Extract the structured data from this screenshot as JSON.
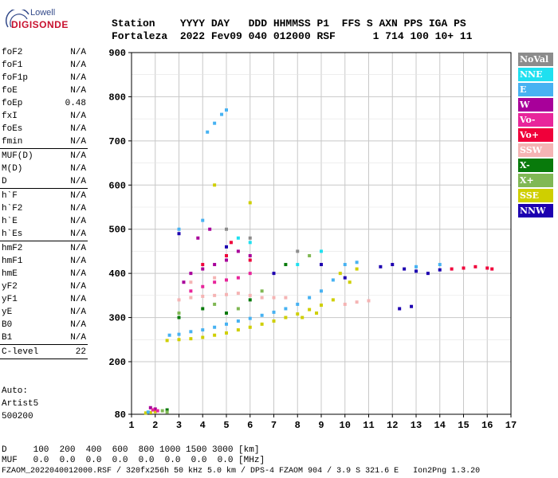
{
  "logo": {
    "line1": "Lowell",
    "line2": "DIGISONDE"
  },
  "header": {
    "row1": "Station    YYYY DAY   DDD HHMMSS P1  FFS S AXN PPS IGA PS",
    "row2": "Fortaleza  2022 Fev09 040 012000 RSF      1 714 100 10+ 11"
  },
  "params": {
    "group1": [
      {
        "name": "foF2",
        "value": "N/A"
      },
      {
        "name": "foF1",
        "value": "N/A"
      },
      {
        "name": "foF1p",
        "value": "N/A"
      },
      {
        "name": "foE",
        "value": "N/A"
      },
      {
        "name": "foEp",
        "value": "0.48"
      },
      {
        "name": "fxI",
        "value": "N/A"
      },
      {
        "name": "foEs",
        "value": "N/A"
      },
      {
        "name": "fmin",
        "value": "N/A"
      }
    ],
    "group2": [
      {
        "name": "MUF(D)",
        "value": "N/A"
      },
      {
        "name": "M(D)",
        "value": "N/A"
      },
      {
        "name": "D",
        "value": "N/A"
      }
    ],
    "group3": [
      {
        "name": "h`F",
        "value": "N/A"
      },
      {
        "name": "h`F2",
        "value": "N/A"
      },
      {
        "name": "h`E",
        "value": "N/A"
      },
      {
        "name": "h`Es",
        "value": "N/A"
      }
    ],
    "group4": [
      {
        "name": "hmF2",
        "value": "N/A"
      },
      {
        "name": "hmF1",
        "value": "N/A"
      },
      {
        "name": "hmE",
        "value": "N/A"
      },
      {
        "name": "yF2",
        "value": "N/A"
      },
      {
        "name": "yF1",
        "value": "N/A"
      },
      {
        "name": "yE",
        "value": "N/A"
      },
      {
        "name": "B0",
        "value": "N/A"
      },
      {
        "name": "B1",
        "value": "N/A"
      }
    ],
    "clevel": {
      "name": "C-level",
      "value": "22"
    }
  },
  "auto": {
    "line1": "Auto:",
    "line2": "Artist5",
    "line3": "500200"
  },
  "legend": [
    {
      "label": "NoVal",
      "color": "#8c8c8c"
    },
    {
      "label": "NNE",
      "color": "#1fe0f0"
    },
    {
      "label": "E",
      "color": "#47b2f2"
    },
    {
      "label": "W",
      "color": "#a8009a"
    },
    {
      "label": "Vo-",
      "color": "#e8259b"
    },
    {
      "label": "Vo+",
      "color": "#f0003a"
    },
    {
      "label": "SSW",
      "color": "#f5b4b4"
    },
    {
      "label": "X-",
      "color": "#087a0b"
    },
    {
      "label": "X+",
      "color": "#80b854"
    },
    {
      "label": "SSE",
      "color": "#cfcf00"
    },
    {
      "label": "NNW",
      "color": "#1d00b0"
    }
  ],
  "bottom": {
    "row1": "D     100  200  400  600  800 1000 1500 3000 [km]",
    "row2": "MUF   0.0  0.0  0.0  0.0  0.0  0.0  0.0  0.0 [MHz]",
    "row3": "FZAOM_2022040012000.RSF / 320fx256h 50 kHz 5.0 km / DPS-4 FZAOM 904 / 3.9 S 321.6 E   Ion2Png 1.3.20"
  },
  "chart_data": {
    "type": "scatter",
    "xlim": [
      1,
      17
    ],
    "ylim": [
      80,
      900
    ],
    "x_ticks": [
      1,
      2,
      3,
      4,
      5,
      6,
      7,
      8,
      9,
      10,
      11,
      12,
      13,
      14,
      15,
      16,
      17
    ],
    "y_ticks": [
      80,
      200,
      300,
      400,
      500,
      600,
      700,
      800,
      900
    ],
    "grid": true,
    "series": [
      {
        "name": "SSE",
        "color": "#cfcf00",
        "points": [
          [
            2.5,
            248
          ],
          [
            3.0,
            250
          ],
          [
            3.5,
            252
          ],
          [
            4.0,
            255
          ],
          [
            4.5,
            260
          ],
          [
            5.0,
            265
          ],
          [
            5.5,
            272
          ],
          [
            6.0,
            278
          ],
          [
            6.5,
            285
          ],
          [
            7.0,
            292
          ],
          [
            7.5,
            300
          ],
          [
            8.0,
            308
          ],
          [
            8.5,
            318
          ],
          [
            9.0,
            328
          ],
          [
            9.5,
            340
          ],
          [
            8.2,
            300
          ],
          [
            8.8,
            310
          ],
          [
            1.6,
            83
          ],
          [
            1.8,
            84
          ],
          [
            2.0,
            86
          ],
          [
            4.5,
            600
          ],
          [
            6.0,
            560
          ],
          [
            9.8,
            400
          ],
          [
            10.2,
            380
          ],
          [
            10.5,
            410
          ]
        ]
      },
      {
        "name": "E",
        "color": "#47b2f2",
        "points": [
          [
            2.6,
            260
          ],
          [
            3.0,
            262
          ],
          [
            3.5,
            268
          ],
          [
            4.0,
            272
          ],
          [
            4.5,
            278
          ],
          [
            5.0,
            285
          ],
          [
            5.5,
            292
          ],
          [
            6.0,
            298
          ],
          [
            6.5,
            305
          ],
          [
            7.0,
            312
          ],
          [
            7.5,
            320
          ],
          [
            8.0,
            330
          ],
          [
            8.5,
            345
          ],
          [
            9.0,
            360
          ],
          [
            9.5,
            385
          ],
          [
            4.2,
            720
          ],
          [
            4.5,
            740
          ],
          [
            4.8,
            760
          ],
          [
            5.0,
            770
          ],
          [
            3.0,
            500
          ],
          [
            4.0,
            520
          ],
          [
            10.0,
            420
          ],
          [
            10.5,
            425
          ],
          [
            13.0,
            415
          ],
          [
            14.0,
            420
          ],
          [
            1.7,
            85
          ]
        ]
      },
      {
        "name": "NNE",
        "color": "#1fe0f0",
        "points": [
          [
            5.5,
            480
          ],
          [
            6.0,
            470
          ],
          [
            8.0,
            420
          ],
          [
            9.0,
            450
          ]
        ]
      },
      {
        "name": "SSW",
        "color": "#f5b4b4",
        "points": [
          [
            3.0,
            340
          ],
          [
            3.5,
            345
          ],
          [
            4.0,
            348
          ],
          [
            4.5,
            350
          ],
          [
            5.0,
            352
          ],
          [
            5.5,
            355
          ],
          [
            6.0,
            350
          ],
          [
            6.5,
            345
          ],
          [
            7.0,
            345
          ],
          [
            7.5,
            345
          ],
          [
            10.0,
            330
          ],
          [
            10.5,
            335
          ],
          [
            11.0,
            338
          ],
          [
            3.5,
            380
          ],
          [
            4.5,
            390
          ]
        ]
      },
      {
        "name": "W",
        "color": "#a8009a",
        "points": [
          [
            3.2,
            380
          ],
          [
            3.5,
            400
          ],
          [
            4.0,
            410
          ],
          [
            4.5,
            420
          ],
          [
            5.0,
            430
          ],
          [
            5.5,
            450
          ],
          [
            6.0,
            440
          ],
          [
            3.8,
            480
          ],
          [
            4.3,
            500
          ],
          [
            1.8,
            95
          ],
          [
            2.0,
            92
          ]
        ]
      },
      {
        "name": "Vo-",
        "color": "#e8259b",
        "points": [
          [
            3.5,
            360
          ],
          [
            4.0,
            370
          ],
          [
            4.5,
            380
          ],
          [
            5.0,
            385
          ],
          [
            5.5,
            390
          ],
          [
            6.0,
            400
          ],
          [
            1.9,
            90
          ],
          [
            2.1,
            88
          ]
        ]
      },
      {
        "name": "Vo+",
        "color": "#f0003a",
        "points": [
          [
            4.0,
            420
          ],
          [
            5.0,
            440
          ],
          [
            5.2,
            470
          ],
          [
            6.0,
            430
          ],
          [
            14.5,
            410
          ],
          [
            15.0,
            412
          ],
          [
            15.5,
            415
          ],
          [
            16.0,
            412
          ],
          [
            16.2,
            410
          ]
        ]
      },
      {
        "name": "X-",
        "color": "#087a0b",
        "points": [
          [
            3.0,
            300
          ],
          [
            4.0,
            320
          ],
          [
            5.0,
            310
          ],
          [
            6.0,
            340
          ],
          [
            7.5,
            420
          ],
          [
            2.5,
            90
          ]
        ]
      },
      {
        "name": "X+",
        "color": "#80b854",
        "points": [
          [
            3.0,
            310
          ],
          [
            4.5,
            330
          ],
          [
            5.5,
            320
          ],
          [
            6.5,
            360
          ],
          [
            8.5,
            440
          ],
          [
            2.3,
            88
          ],
          [
            2.5,
            85
          ]
        ]
      },
      {
        "name": "NNW",
        "color": "#1d00b0",
        "points": [
          [
            3.0,
            490
          ],
          [
            5.0,
            460
          ],
          [
            7.0,
            400
          ],
          [
            9.0,
            420
          ],
          [
            10.0,
            390
          ],
          [
            11.5,
            415
          ],
          [
            12.0,
            420
          ],
          [
            12.5,
            410
          ],
          [
            12.8,
            325
          ],
          [
            12.3,
            320
          ],
          [
            13.0,
            405
          ],
          [
            13.5,
            400
          ],
          [
            14.0,
            408
          ]
        ]
      },
      {
        "name": "NoVal",
        "color": "#8c8c8c",
        "points": [
          [
            5.0,
            500
          ],
          [
            6.0,
            480
          ],
          [
            8.0,
            450
          ]
        ]
      }
    ]
  }
}
